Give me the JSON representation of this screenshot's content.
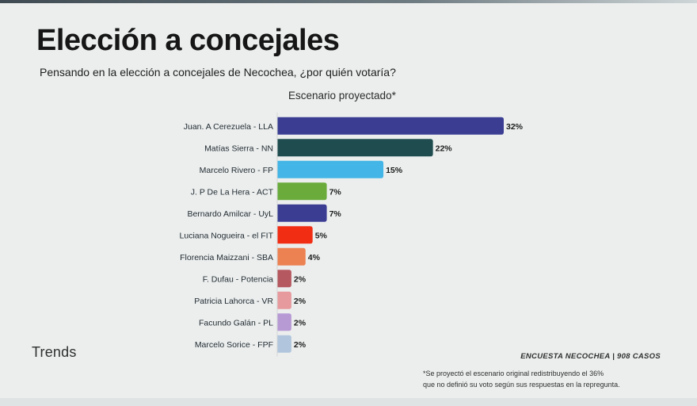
{
  "header": {
    "title": "Elección a concejales",
    "subtitle": "Pensando en la elección a concejales de Necochea, ¿por quién votaría?",
    "scenario": "Escenario proyectado*"
  },
  "footer": {
    "logo": "Trends",
    "source": "ENCUESTA NECOCHEA | 908 CASOS",
    "note_line1": "*Se proyectó el escenario original redistribuyendo el 36%",
    "note_line2": "que no definió su voto según sus respuestas en la repregunta."
  },
  "chart_data": {
    "type": "bar",
    "orientation": "horizontal",
    "categories": [
      "Juan. A Cerezuela - LLA",
      "Matías Sierra - NN",
      "Marcelo Rivero - FP",
      "J. P De La Hera - ACT",
      "Bernardo Amilcar - UyL",
      "Luciana Nogueira - el FIT",
      "Florencia Maizzani - SBA",
      "F. Dufau - Potencia",
      "Patricia Lahorca - VR",
      "Facundo Galán - PL",
      "Marcelo Sorice - FPF"
    ],
    "values": [
      32,
      22,
      15,
      7,
      7,
      5,
      4,
      2,
      2,
      2,
      2
    ],
    "value_labels": [
      "32%",
      "22%",
      "15%",
      "7%",
      "7%",
      "5%",
      "4%",
      "2%",
      "2%",
      "2%",
      "2%"
    ],
    "colors": [
      "#3a3d92",
      "#1f4d4f",
      "#43b5e6",
      "#6aab3c",
      "#3a3d92",
      "#f12d14",
      "#ec8151",
      "#b5585f",
      "#e79a9d",
      "#b79ad4",
      "#b1c5dc"
    ],
    "xlim": [
      0,
      35
    ],
    "grid": false,
    "legend": "none"
  }
}
